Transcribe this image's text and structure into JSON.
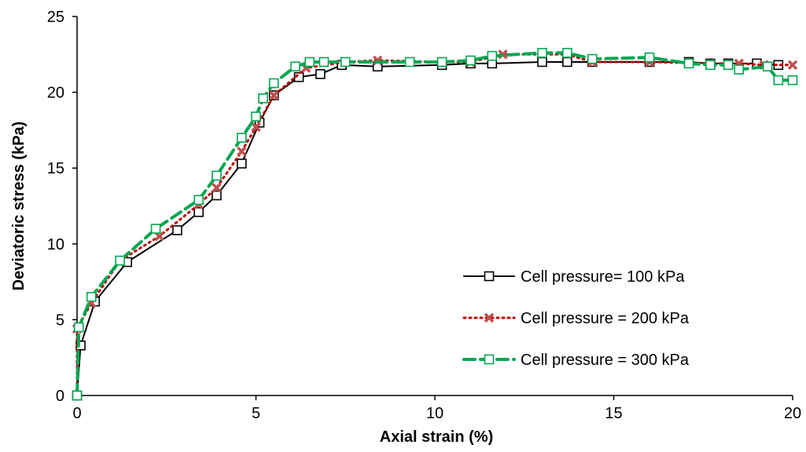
{
  "chart_data": {
    "type": "line",
    "title": "",
    "xlabel": "Axial strain (%)",
    "ylabel": "Deviatoric stress (kPa)",
    "xlim": [
      0,
      20
    ],
    "ylim": [
      0,
      25
    ],
    "x_ticks": [
      0,
      5,
      10,
      15,
      20
    ],
    "y_ticks": [
      0,
      5,
      10,
      15,
      20,
      25
    ],
    "x_tick_labels": [
      "0",
      "5",
      "10",
      "15",
      "20"
    ],
    "y_tick_labels": [
      "0",
      "5",
      "10",
      "15",
      "20",
      "25"
    ],
    "grid": false,
    "legend_position": "right",
    "series": [
      {
        "name": "Cell pressure= 100 kPa",
        "color": "#000000",
        "line_style": "solid",
        "marker": "open-square",
        "points": [
          [
            0,
            0
          ],
          [
            0.1,
            3.3
          ],
          [
            0.5,
            6.2
          ],
          [
            1.4,
            8.8
          ],
          [
            2.8,
            10.9
          ],
          [
            3.4,
            12.1
          ],
          [
            3.9,
            13.2
          ],
          [
            4.6,
            15.3
          ],
          [
            5.1,
            18.0
          ],
          [
            5.5,
            19.8
          ],
          [
            6.2,
            21.0
          ],
          [
            6.8,
            21.2
          ],
          [
            7.4,
            21.8
          ],
          [
            8.4,
            21.7
          ],
          [
            10.2,
            21.8
          ],
          [
            11.0,
            21.9
          ],
          [
            11.6,
            21.9
          ],
          [
            13.0,
            22.0
          ],
          [
            13.7,
            22.0
          ],
          [
            14.4,
            22.0
          ],
          [
            16.0,
            22.0
          ],
          [
            17.1,
            22.0
          ],
          [
            17.7,
            21.9
          ],
          [
            18.2,
            21.9
          ],
          [
            19.0,
            21.9
          ],
          [
            19.6,
            21.8
          ]
        ]
      },
      {
        "name": "Cell pressure = 200 kPa",
        "color": "#c00000",
        "line_style": "dotted",
        "marker": "x",
        "points": [
          [
            0,
            0
          ],
          [
            0,
            4.4
          ],
          [
            0.4,
            6.1
          ],
          [
            1.2,
            8.9
          ],
          [
            2.3,
            10.5
          ],
          [
            3.4,
            12.6
          ],
          [
            3.9,
            13.7
          ],
          [
            4.6,
            16.1
          ],
          [
            5.0,
            17.7
          ],
          [
            5.5,
            19.8
          ],
          [
            6.4,
            21.6
          ],
          [
            7.5,
            22.0
          ],
          [
            8.4,
            22.1
          ],
          [
            10.2,
            22.0
          ],
          [
            11.0,
            22.0
          ],
          [
            11.9,
            22.5
          ],
          [
            13.7,
            22.5
          ],
          [
            14.4,
            22.0
          ],
          [
            16.0,
            22.0
          ],
          [
            17.7,
            21.9
          ],
          [
            18.5,
            21.9
          ],
          [
            19.2,
            21.8
          ],
          [
            20.0,
            21.8
          ]
        ]
      },
      {
        "name": "Cell pressure = 300 kPa",
        "color": "#00a651",
        "line_style": "dashed",
        "marker": "open-square",
        "points": [
          [
            0,
            0
          ],
          [
            0.05,
            4.5
          ],
          [
            0.4,
            6.5
          ],
          [
            1.2,
            8.9
          ],
          [
            2.2,
            11.0
          ],
          [
            3.4,
            12.9
          ],
          [
            3.9,
            14.5
          ],
          [
            4.6,
            17.0
          ],
          [
            5.0,
            18.4
          ],
          [
            5.2,
            19.6
          ],
          [
            5.5,
            20.6
          ],
          [
            6.1,
            21.7
          ],
          [
            6.5,
            22.0
          ],
          [
            6.9,
            22.0
          ],
          [
            7.5,
            22.0
          ],
          [
            9.3,
            22.0
          ],
          [
            10.2,
            22.0
          ],
          [
            11.0,
            22.1
          ],
          [
            11.6,
            22.4
          ],
          [
            13.0,
            22.6
          ],
          [
            13.7,
            22.6
          ],
          [
            14.4,
            22.2
          ],
          [
            16.0,
            22.3
          ],
          [
            17.1,
            21.9
          ],
          [
            17.7,
            21.8
          ],
          [
            18.2,
            21.8
          ],
          [
            18.5,
            21.5
          ],
          [
            19.3,
            21.7
          ],
          [
            19.6,
            20.8
          ],
          [
            20.0,
            20.8
          ]
        ]
      }
    ]
  }
}
